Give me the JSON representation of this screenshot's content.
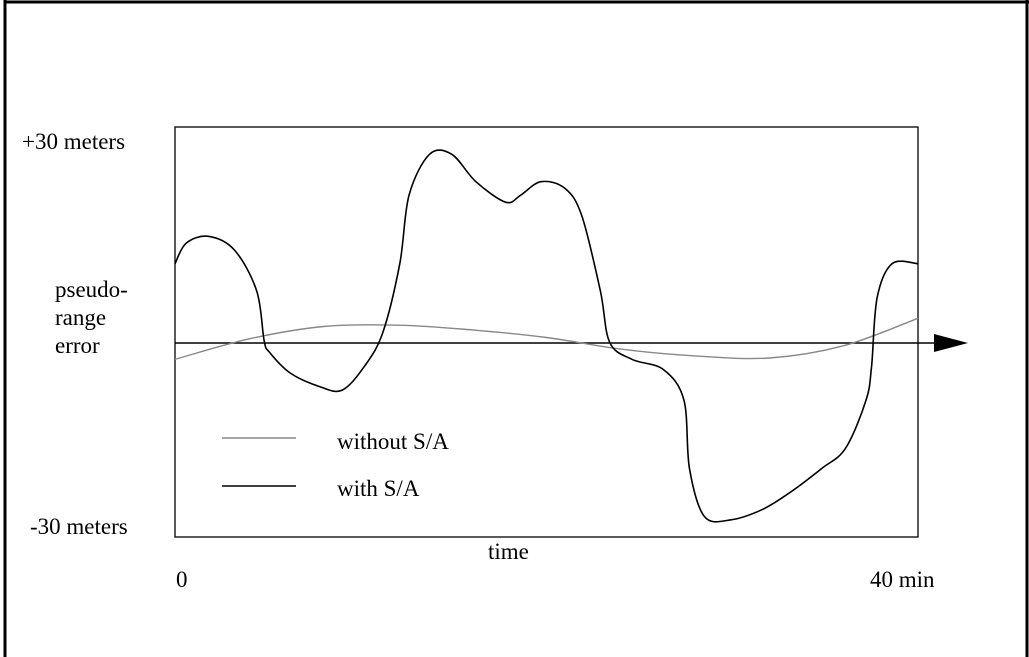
{
  "chart_data": {
    "type": "line",
    "title": "",
    "xlabel": "time",
    "ylabel": [
      "pseudo-",
      "range",
      "error"
    ],
    "x_tick_labels": {
      "min": "0",
      "max": "40 min"
    },
    "y_tick_labels": {
      "max": "+30 meters",
      "min": "-30 meters"
    },
    "xlim": [
      0,
      40
    ],
    "ylim": [
      -30,
      30
    ],
    "grid": false,
    "legend_position": "bottom-left",
    "series": [
      {
        "name": "without S/A",
        "color": "#888888",
        "x": [
          0,
          4,
          8,
          12,
          16,
          20,
          24,
          28,
          32,
          36,
          40
        ],
        "y": [
          -4,
          -1,
          0.8,
          1,
          0.3,
          -0.8,
          -2.5,
          -3.5,
          -3.8,
          -2,
          2
        ]
      },
      {
        "name": "with S/A",
        "color": "#000000",
        "x": [
          0,
          0.6,
          1.8,
          3.2,
          4.4,
          4.8,
          5.1,
          6.2,
          7.8,
          9,
          10.2,
          11.2,
          12.1,
          12.6,
          13.7,
          14.9,
          16.2,
          17.8,
          18.6,
          19.7,
          21,
          21.9,
          22.9,
          23.4,
          24.6,
          26.3,
          27.4,
          27.7,
          28.5,
          29.9,
          31.6,
          33.1,
          34.8,
          36.1,
          37.2,
          37.5,
          37.8,
          38.6,
          40
        ],
        "y": [
          10,
          13,
          14,
          12,
          6,
          -1.3,
          -3,
          -6,
          -8,
          -8.5,
          -5,
          0,
          10,
          20,
          26,
          26,
          22,
          19,
          20,
          22,
          21,
          17,
          6,
          -1.5,
          -4,
          -5.5,
          -10,
          -20,
          -27,
          -27.5,
          -26,
          -23.5,
          -20,
          -17,
          -10,
          -5,
          5,
          10,
          10
        ]
      }
    ]
  }
}
